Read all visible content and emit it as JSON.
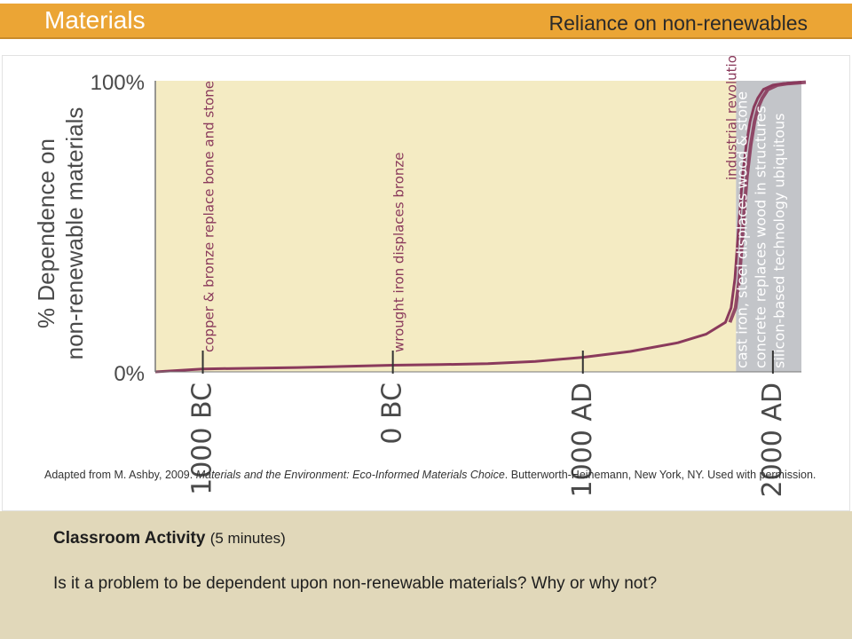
{
  "header": {
    "title": "Materials",
    "subtitle": "Reliance on non-renewables"
  },
  "chart_data": {
    "type": "area",
    "ylabel_line1": "% Dependence on",
    "ylabel_line2": "non-renewable materials",
    "y_ticks": [
      "100%",
      "0%"
    ],
    "ylim": [
      0,
      100
    ],
    "x_ticks": [
      "1000 BC",
      "0 BC",
      "1000 AD",
      "2000 AD"
    ],
    "x_tick_years": [
      -1000,
      0,
      1000,
      2000
    ],
    "x_range": [
      -1250,
      2150
    ],
    "series": [
      {
        "x": [
          -1250,
          -1000,
          -500,
          0,
          250,
          500,
          750,
          1000,
          1250,
          1500,
          1650,
          1750,
          1780,
          1800,
          1820,
          1840,
          1860,
          1880,
          1900,
          1920,
          1950,
          2000,
          2050,
          2150
        ],
        "y": [
          0,
          1,
          1.5,
          2.3,
          2.5,
          2.8,
          3.6,
          5,
          7,
          10,
          13,
          17,
          22,
          32,
          50,
          67,
          78,
          86,
          91,
          94,
          97,
          98.5,
          99,
          99.5
        ]
      }
    ],
    "background_colors": {
      "pre_industrial": "#f4ebc3",
      "industrial": "#c3c5c9"
    },
    "line_color": "#8a3a5c",
    "annotations": [
      {
        "text": "copper & bronze replace bone and stone",
        "x": -1000,
        "color": "#8a3a5c"
      },
      {
        "text": "wrought iron displaces bronze",
        "x": 0,
        "color": "#8a3a5c"
      },
      {
        "text": "industrial revolution",
        "x": 1750,
        "color": "#8a3a5c"
      }
    ],
    "industrial_notes": [
      "cast iron, steel displaces wood & stone",
      "concrete replaces wood in structures",
      "silicon-based technology ubiquitous"
    ]
  },
  "caption": {
    "prefix": "Adapted from M. Ashby, 2009. ",
    "title": "Materials and the Environment: Eco-Informed Materials Choice",
    "suffix": ". Butterworth-Heinemann, New York, NY. Used with permission."
  },
  "activity": {
    "title": "Classroom Activity",
    "duration": "(5 minutes)",
    "question": "Is it a problem to be dependent upon non-renewable materials?  Why or why not?"
  }
}
